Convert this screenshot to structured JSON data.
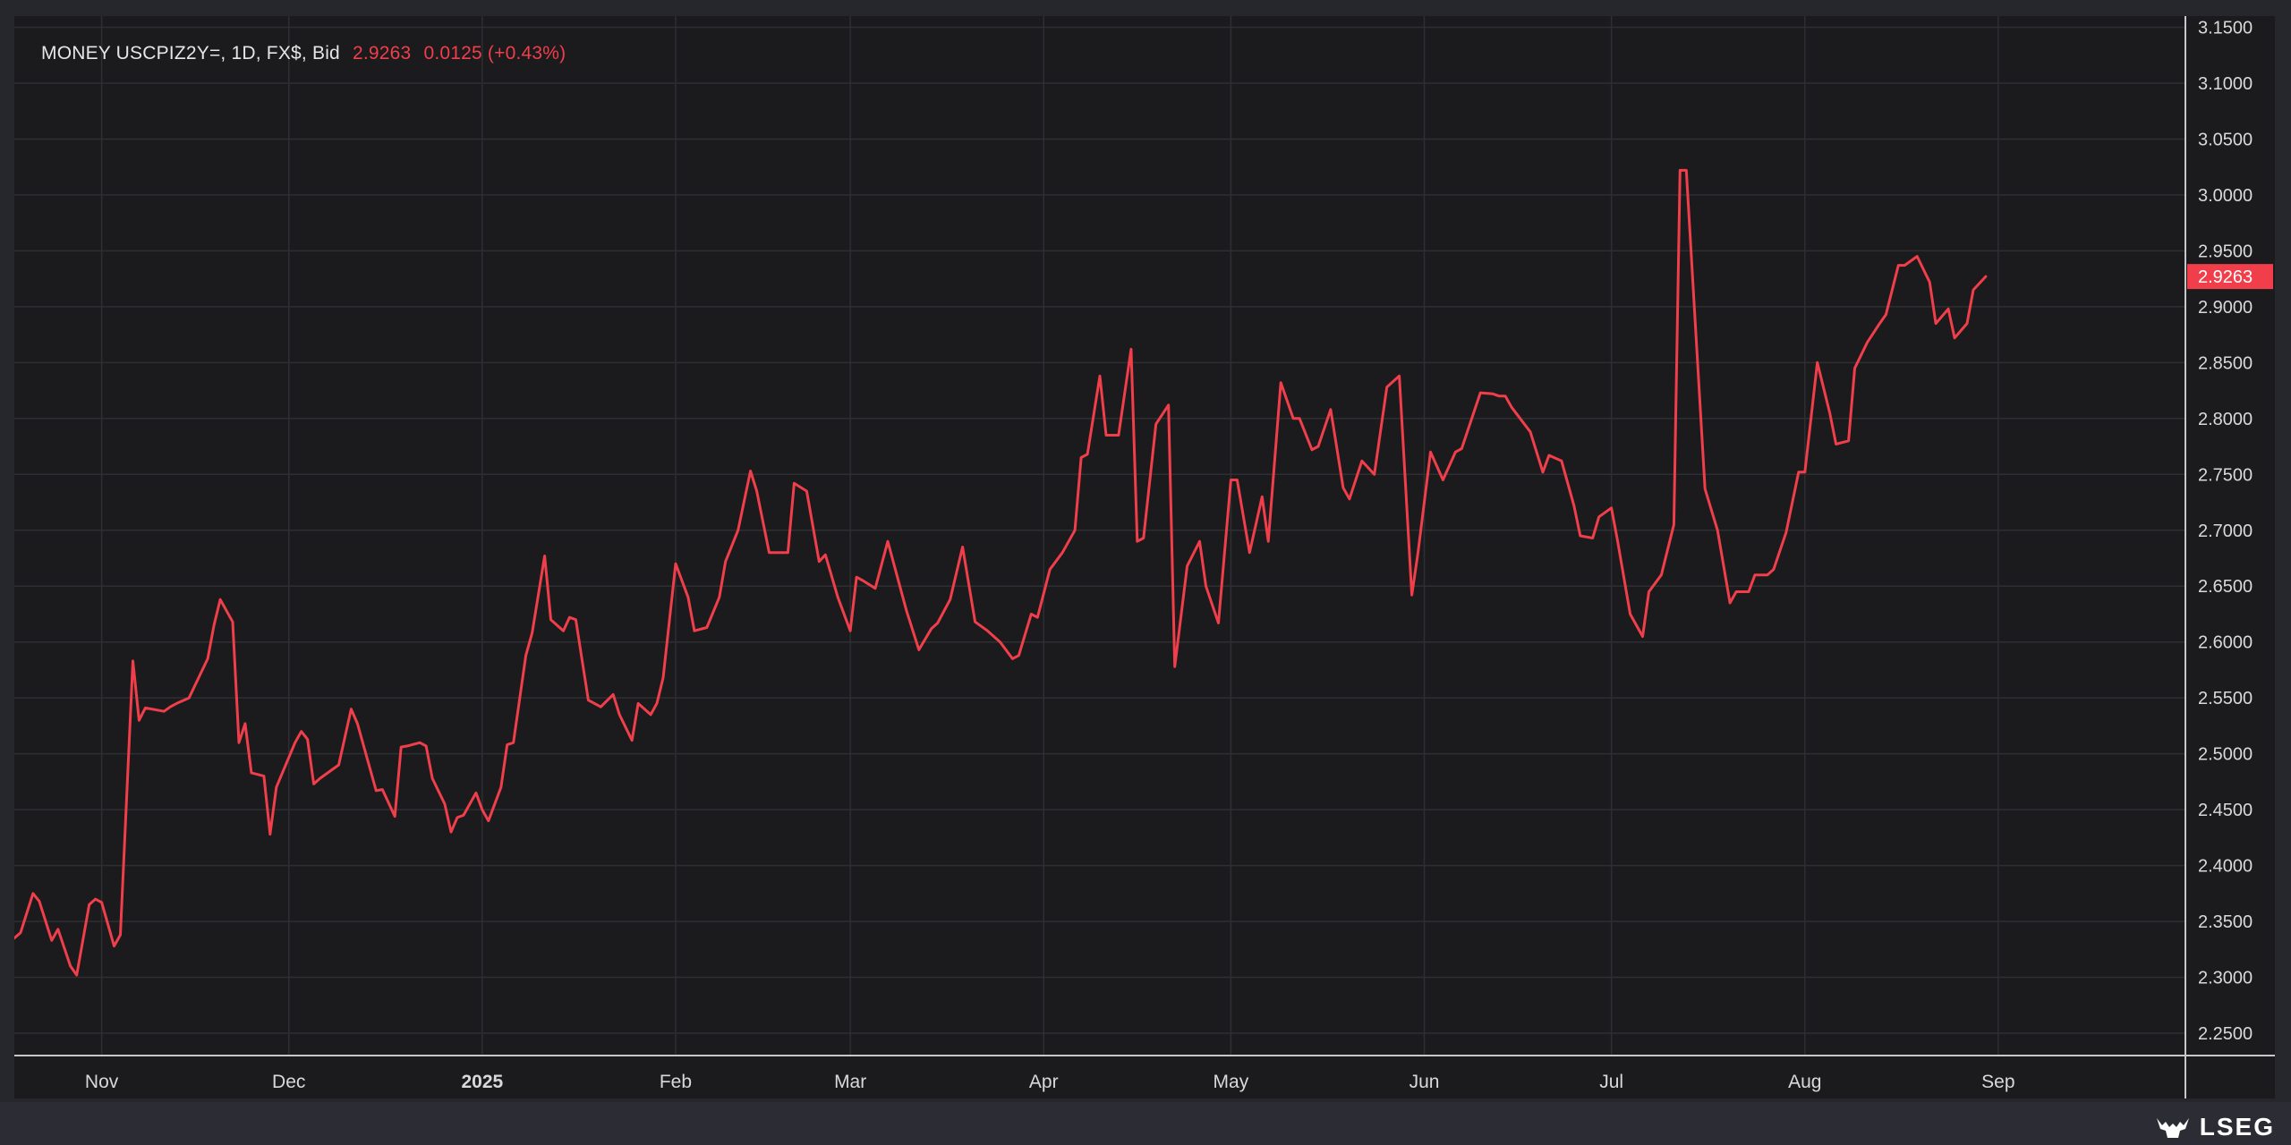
{
  "header": {
    "instrument": "MONEY USCPIZ2Y=, 1D, FX$, Bid",
    "last": "2.9263",
    "change": "0.0125 (+0.43%)"
  },
  "brand": {
    "name": "LSEG",
    "icon": "lseg-stag-icon"
  },
  "colors": {
    "line": "#f03e4b",
    "background": "#1b1b1d",
    "grid": "#2e2f33",
    "axis_text": "#d9d9d9",
    "price_tag": "#f03e4b"
  },
  "chart_data": {
    "type": "line",
    "title": "",
    "xlabel": "",
    "ylabel": "",
    "grid": true,
    "last_value_label": "2.9263",
    "ylim": [
      2.23,
      3.16
    ],
    "xlim": [
      "2024-10-18",
      "2025-10-01"
    ],
    "y_ticks": [
      "2.2500",
      "2.3000",
      "2.3500",
      "2.4000",
      "2.4500",
      "2.5000",
      "2.5500",
      "2.6000",
      "2.6500",
      "2.7000",
      "2.7500",
      "2.8000",
      "2.8500",
      "2.9000",
      "2.9500",
      "3.0000",
      "3.0500",
      "3.1000",
      "3.1500"
    ],
    "x_ticks": [
      {
        "label": "Nov",
        "date": "2024-11-01",
        "bold": false
      },
      {
        "label": "Dec",
        "date": "2024-12-01",
        "bold": false
      },
      {
        "label": "2025",
        "date": "2025-01-01",
        "bold": true
      },
      {
        "label": "Feb",
        "date": "2025-02-01",
        "bold": false
      },
      {
        "label": "Mar",
        "date": "2025-03-01",
        "bold": false
      },
      {
        "label": "Apr",
        "date": "2025-04-01",
        "bold": false
      },
      {
        "label": "May",
        "date": "2025-05-01",
        "bold": false
      },
      {
        "label": "Jun",
        "date": "2025-06-01",
        "bold": false
      },
      {
        "label": "Jul",
        "date": "2025-07-01",
        "bold": false
      },
      {
        "label": "Aug",
        "date": "2025-08-01",
        "bold": false
      },
      {
        "label": "Sep",
        "date": "2025-09-01",
        "bold": false
      }
    ],
    "series": [
      {
        "points": [
          [
            "2024-10-18",
            2.335
          ],
          [
            "2024-10-19",
            2.34
          ],
          [
            "2024-10-21",
            2.375
          ],
          [
            "2024-10-22",
            2.368
          ],
          [
            "2024-10-24",
            2.333
          ],
          [
            "2024-10-25",
            2.343
          ],
          [
            "2024-10-27",
            2.31
          ],
          [
            "2024-10-28",
            2.302
          ],
          [
            "2024-10-30",
            2.365
          ],
          [
            "2024-10-31",
            2.37
          ],
          [
            "2024-11-01",
            2.367
          ],
          [
            "2024-11-03",
            2.328
          ],
          [
            "2024-11-04",
            2.338
          ],
          [
            "2024-11-06",
            2.583
          ],
          [
            "2024-11-07",
            2.53
          ],
          [
            "2024-11-08",
            2.541
          ],
          [
            "2024-11-11",
            2.538
          ],
          [
            "2024-11-12",
            2.542
          ],
          [
            "2024-11-13",
            2.545
          ],
          [
            "2024-11-15",
            2.55
          ],
          [
            "2024-11-18",
            2.585
          ],
          [
            "2024-11-19",
            2.615
          ],
          [
            "2024-11-20",
            2.638
          ],
          [
            "2024-11-22",
            2.618
          ],
          [
            "2024-11-23",
            2.51
          ],
          [
            "2024-11-24",
            2.527
          ],
          [
            "2024-11-25",
            2.483
          ],
          [
            "2024-11-27",
            2.48
          ],
          [
            "2024-11-28",
            2.428
          ],
          [
            "2024-11-29",
            2.47
          ],
          [
            "2024-12-02",
            2.51
          ],
          [
            "2024-12-03",
            2.52
          ],
          [
            "2024-12-04",
            2.513
          ],
          [
            "2024-12-05",
            2.473
          ],
          [
            "2024-12-06",
            2.478
          ],
          [
            "2024-12-09",
            2.49
          ],
          [
            "2024-12-11",
            2.54
          ],
          [
            "2024-12-12",
            2.527
          ],
          [
            "2024-12-15",
            2.467
          ],
          [
            "2024-12-16",
            2.468
          ],
          [
            "2024-12-18",
            2.444
          ],
          [
            "2024-12-19",
            2.506
          ],
          [
            "2024-12-20",
            2.507
          ],
          [
            "2024-12-22",
            2.51
          ],
          [
            "2024-12-23",
            2.507
          ],
          [
            "2024-12-24",
            2.478
          ],
          [
            "2024-12-26",
            2.455
          ],
          [
            "2024-12-27",
            2.43
          ],
          [
            "2024-12-28",
            2.443
          ],
          [
            "2024-12-29",
            2.445
          ],
          [
            "2024-12-31",
            2.465
          ],
          [
            "2025-01-01",
            2.45
          ],
          [
            "2025-01-02",
            2.44
          ],
          [
            "2025-01-04",
            2.47
          ],
          [
            "2025-01-05",
            2.508
          ],
          [
            "2025-01-06",
            2.51
          ],
          [
            "2025-01-08",
            2.588
          ],
          [
            "2025-01-09",
            2.608
          ],
          [
            "2025-01-11",
            2.677
          ],
          [
            "2025-01-12",
            2.62
          ],
          [
            "2025-01-14",
            2.61
          ],
          [
            "2025-01-15",
            2.622
          ],
          [
            "2025-01-16",
            2.62
          ],
          [
            "2025-01-18",
            2.548
          ],
          [
            "2025-01-20",
            2.542
          ],
          [
            "2025-01-22",
            2.553
          ],
          [
            "2025-01-23",
            2.535
          ],
          [
            "2025-01-25",
            2.512
          ],
          [
            "2025-01-26",
            2.545
          ],
          [
            "2025-01-28",
            2.535
          ],
          [
            "2025-01-29",
            2.545
          ],
          [
            "2025-01-30",
            2.568
          ],
          [
            "2025-02-01",
            2.67
          ],
          [
            "2025-02-03",
            2.64
          ],
          [
            "2025-02-04",
            2.61
          ],
          [
            "2025-02-06",
            2.613
          ],
          [
            "2025-02-08",
            2.64
          ],
          [
            "2025-02-09",
            2.672
          ],
          [
            "2025-02-11",
            2.7
          ],
          [
            "2025-02-13",
            2.753
          ],
          [
            "2025-02-14",
            2.735
          ],
          [
            "2025-02-16",
            2.68
          ],
          [
            "2025-02-17",
            2.68
          ],
          [
            "2025-02-19",
            2.68
          ],
          [
            "2025-02-20",
            2.742
          ],
          [
            "2025-02-22",
            2.735
          ],
          [
            "2025-02-24",
            2.672
          ],
          [
            "2025-02-25",
            2.678
          ],
          [
            "2025-02-27",
            2.64
          ],
          [
            "2025-03-01",
            2.61
          ],
          [
            "2025-03-02",
            2.658
          ],
          [
            "2025-03-03",
            2.655
          ],
          [
            "2025-03-05",
            2.648
          ],
          [
            "2025-03-07",
            2.69
          ],
          [
            "2025-03-10",
            2.628
          ],
          [
            "2025-03-12",
            2.593
          ],
          [
            "2025-03-14",
            2.612
          ],
          [
            "2025-03-15",
            2.617
          ],
          [
            "2025-03-17",
            2.638
          ],
          [
            "2025-03-19",
            2.685
          ],
          [
            "2025-03-21",
            2.618
          ],
          [
            "2025-03-23",
            2.61
          ],
          [
            "2025-03-25",
            2.6
          ],
          [
            "2025-03-27",
            2.585
          ],
          [
            "2025-03-28",
            2.588
          ],
          [
            "2025-03-30",
            2.625
          ],
          [
            "2025-03-31",
            2.622
          ],
          [
            "2025-04-02",
            2.665
          ],
          [
            "2025-04-04",
            2.68
          ],
          [
            "2025-04-06",
            2.7
          ],
          [
            "2025-04-07",
            2.765
          ],
          [
            "2025-04-08",
            2.768
          ],
          [
            "2025-04-10",
            2.838
          ],
          [
            "2025-04-11",
            2.785
          ],
          [
            "2025-04-13",
            2.785
          ],
          [
            "2025-04-15",
            2.862
          ],
          [
            "2025-04-16",
            2.69
          ],
          [
            "2025-04-17",
            2.693
          ],
          [
            "2025-04-19",
            2.795
          ],
          [
            "2025-04-21",
            2.812
          ],
          [
            "2025-04-22",
            2.578
          ],
          [
            "2025-04-24",
            2.668
          ],
          [
            "2025-04-26",
            2.69
          ],
          [
            "2025-04-27",
            2.65
          ],
          [
            "2025-04-29",
            2.617
          ],
          [
            "2025-05-01",
            2.745
          ],
          [
            "2025-05-02",
            2.745
          ],
          [
            "2025-05-04",
            2.68
          ],
          [
            "2025-05-06",
            2.73
          ],
          [
            "2025-05-07",
            2.69
          ],
          [
            "2025-05-09",
            2.832
          ],
          [
            "2025-05-11",
            2.8
          ],
          [
            "2025-05-12",
            2.8
          ],
          [
            "2025-05-14",
            2.772
          ],
          [
            "2025-05-15",
            2.775
          ],
          [
            "2025-05-17",
            2.808
          ],
          [
            "2025-05-19",
            2.738
          ],
          [
            "2025-05-20",
            2.728
          ],
          [
            "2025-05-22",
            2.762
          ],
          [
            "2025-05-24",
            2.75
          ],
          [
            "2025-05-26",
            2.828
          ],
          [
            "2025-05-28",
            2.838
          ],
          [
            "2025-05-30",
            2.642
          ],
          [
            "2025-05-31",
            2.68
          ],
          [
            "2025-06-02",
            2.77
          ],
          [
            "2025-06-04",
            2.745
          ],
          [
            "2025-06-06",
            2.77
          ],
          [
            "2025-06-07",
            2.773
          ],
          [
            "2025-06-10",
            2.823
          ],
          [
            "2025-06-12",
            2.822
          ],
          [
            "2025-06-13",
            2.82
          ],
          [
            "2025-06-14",
            2.82
          ],
          [
            "2025-06-15",
            2.81
          ],
          [
            "2025-06-18",
            2.788
          ],
          [
            "2025-06-20",
            2.752
          ],
          [
            "2025-06-21",
            2.767
          ],
          [
            "2025-06-23",
            2.762
          ],
          [
            "2025-06-25",
            2.722
          ],
          [
            "2025-06-26",
            2.695
          ],
          [
            "2025-06-28",
            2.693
          ],
          [
            "2025-06-29",
            2.712
          ],
          [
            "2025-07-01",
            2.72
          ],
          [
            "2025-07-02",
            2.69
          ],
          [
            "2025-07-04",
            2.625
          ],
          [
            "2025-07-06",
            2.605
          ],
          [
            "2025-07-07",
            2.645
          ],
          [
            "2025-07-09",
            2.66
          ],
          [
            "2025-07-11",
            2.705
          ],
          [
            "2025-07-12",
            3.022
          ],
          [
            "2025-07-13",
            3.022
          ],
          [
            "2025-07-16",
            2.737
          ],
          [
            "2025-07-18",
            2.7
          ],
          [
            "2025-07-20",
            2.635
          ],
          [
            "2025-07-21",
            2.645
          ],
          [
            "2025-07-23",
            2.645
          ],
          [
            "2025-07-24",
            2.66
          ],
          [
            "2025-07-26",
            2.66
          ],
          [
            "2025-07-27",
            2.665
          ],
          [
            "2025-07-29",
            2.698
          ],
          [
            "2025-07-31",
            2.752
          ],
          [
            "2025-08-01",
            2.752
          ],
          [
            "2025-08-03",
            2.85
          ],
          [
            "2025-08-05",
            2.805
          ],
          [
            "2025-08-06",
            2.777
          ],
          [
            "2025-08-08",
            2.78
          ],
          [
            "2025-08-09",
            2.845
          ],
          [
            "2025-08-11",
            2.868
          ],
          [
            "2025-08-13",
            2.885
          ],
          [
            "2025-08-14",
            2.893
          ],
          [
            "2025-08-16",
            2.937
          ],
          [
            "2025-08-17",
            2.937
          ],
          [
            "2025-08-19",
            2.945
          ],
          [
            "2025-08-21",
            2.922
          ],
          [
            "2025-08-22",
            2.885
          ],
          [
            "2025-08-24",
            2.898
          ],
          [
            "2025-08-25",
            2.872
          ],
          [
            "2025-08-27",
            2.885
          ],
          [
            "2025-08-28",
            2.915
          ],
          [
            "2025-08-30",
            2.927
          ]
        ]
      }
    ]
  }
}
